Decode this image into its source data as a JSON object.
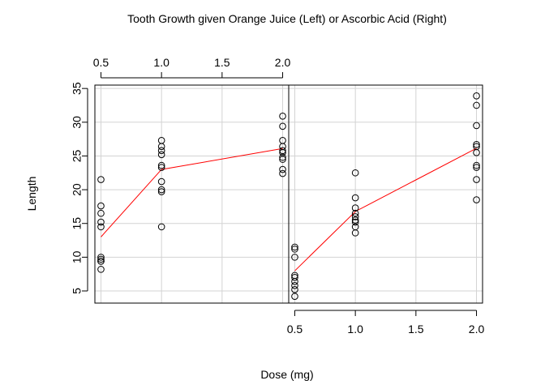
{
  "chart_data": {
    "type": "scatter",
    "title": "Tooth Growth given Orange Juice (Left) or Ascorbic Acid (Right)",
    "xlabel": "Dose (mg)",
    "ylabel": "Length",
    "grid": true,
    "ylim": [
      3.2,
      35.5
    ],
    "yticks": [
      5,
      10,
      15,
      20,
      25,
      30,
      35
    ],
    "xticks": [
      0.5,
      1.0,
      1.5,
      2.0
    ],
    "xtick_labels": [
      "0.5",
      "1.0",
      "1.5",
      "2.0"
    ],
    "colors": {
      "points": "#000000",
      "fit_line": "#ff0000",
      "grid": "#d3d3d3"
    },
    "panels": [
      {
        "name": "OJ",
        "position": "left",
        "x_axis_side": "top",
        "xlim": [
          0.45,
          2.05
        ],
        "points": [
          {
            "x": 0.5,
            "y": 21.5
          },
          {
            "x": 0.5,
            "y": 17.6
          },
          {
            "x": 0.5,
            "y": 16.5
          },
          {
            "x": 0.5,
            "y": 15.2
          },
          {
            "x": 0.5,
            "y": 14.5
          },
          {
            "x": 0.5,
            "y": 10.0
          },
          {
            "x": 0.5,
            "y": 9.7
          },
          {
            "x": 0.5,
            "y": 9.4
          },
          {
            "x": 0.5,
            "y": 9.4
          },
          {
            "x": 0.5,
            "y": 8.2
          },
          {
            "x": 1.0,
            "y": 27.3
          },
          {
            "x": 1.0,
            "y": 26.4
          },
          {
            "x": 1.0,
            "y": 25.8
          },
          {
            "x": 1.0,
            "y": 25.2
          },
          {
            "x": 1.0,
            "y": 23.6
          },
          {
            "x": 1.0,
            "y": 23.3
          },
          {
            "x": 1.0,
            "y": 21.2
          },
          {
            "x": 1.0,
            "y": 20.0
          },
          {
            "x": 1.0,
            "y": 19.7
          },
          {
            "x": 1.0,
            "y": 14.5
          },
          {
            "x": 2.0,
            "y": 30.9
          },
          {
            "x": 2.0,
            "y": 29.4
          },
          {
            "x": 2.0,
            "y": 27.3
          },
          {
            "x": 2.0,
            "y": 26.4
          },
          {
            "x": 2.0,
            "y": 25.8
          },
          {
            "x": 2.0,
            "y": 25.5
          },
          {
            "x": 2.0,
            "y": 24.8
          },
          {
            "x": 2.0,
            "y": 24.5
          },
          {
            "x": 2.0,
            "y": 23.0
          },
          {
            "x": 2.0,
            "y": 22.4
          }
        ],
        "fit": [
          {
            "x": 0.5,
            "y": 13.0
          },
          {
            "x": 1.0,
            "y": 23.0
          },
          {
            "x": 2.0,
            "y": 26.1
          }
        ]
      },
      {
        "name": "VC",
        "position": "right",
        "x_axis_side": "bottom",
        "xlim": [
          0.45,
          2.05
        ],
        "points": [
          {
            "x": 0.5,
            "y": 11.5
          },
          {
            "x": 0.5,
            "y": 11.2
          },
          {
            "x": 0.5,
            "y": 10.0
          },
          {
            "x": 0.5,
            "y": 7.3
          },
          {
            "x": 0.5,
            "y": 7.0
          },
          {
            "x": 0.5,
            "y": 6.4
          },
          {
            "x": 0.5,
            "y": 5.8
          },
          {
            "x": 0.5,
            "y": 5.2
          },
          {
            "x": 0.5,
            "y": 4.2
          },
          {
            "x": 1.0,
            "y": 22.5
          },
          {
            "x": 1.0,
            "y": 18.8
          },
          {
            "x": 1.0,
            "y": 17.3
          },
          {
            "x": 1.0,
            "y": 16.5
          },
          {
            "x": 1.0,
            "y": 16.0
          },
          {
            "x": 1.0,
            "y": 15.5
          },
          {
            "x": 1.0,
            "y": 15.2
          },
          {
            "x": 1.0,
            "y": 14.5
          },
          {
            "x": 1.0,
            "y": 13.6
          },
          {
            "x": 2.0,
            "y": 33.9
          },
          {
            "x": 2.0,
            "y": 32.5
          },
          {
            "x": 2.0,
            "y": 29.5
          },
          {
            "x": 2.0,
            "y": 26.7
          },
          {
            "x": 2.0,
            "y": 26.4
          },
          {
            "x": 2.0,
            "y": 25.5
          },
          {
            "x": 2.0,
            "y": 23.6
          },
          {
            "x": 2.0,
            "y": 23.3
          },
          {
            "x": 2.0,
            "y": 21.5
          },
          {
            "x": 2.0,
            "y": 18.5
          }
        ],
        "fit": [
          {
            "x": 0.5,
            "y": 7.98
          },
          {
            "x": 1.0,
            "y": 16.77
          },
          {
            "x": 2.0,
            "y": 26.14
          }
        ]
      }
    ]
  }
}
